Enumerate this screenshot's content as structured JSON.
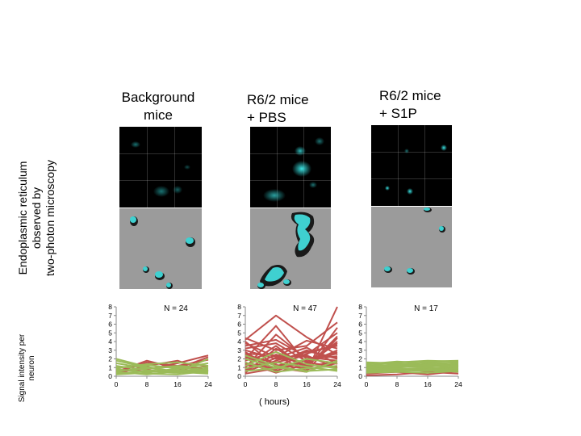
{
  "columns": [
    {
      "title_line1": "Background",
      "title_line2": "mice"
    },
    {
      "title_line1": "R6/2 mice",
      "title_line2": "+ PBS"
    },
    {
      "title_line1": "R6/2 mice",
      "title_line2": "+ S1P"
    }
  ],
  "side_label": {
    "line1": "Endoplasmic  reticulum",
    "line2": "observed by",
    "line3": "two-photon microscopy"
  },
  "colors": {
    "red_trace": "#c0504d",
    "green_trace": "#9bbb59",
    "recon_bg": "#9b9b9b",
    "cyan": "#2fd6d6"
  },
  "chart_data": [
    {
      "type": "line",
      "title": "N = 24",
      "ylabel": "Signal intensity per neuron",
      "xlabel": "",
      "x": [
        0,
        8,
        16,
        24
      ],
      "xticks": [
        "0",
        "8",
        "16",
        "24"
      ],
      "yticks": [
        "0",
        "1",
        "2",
        "3",
        "4",
        "5",
        "6",
        "7",
        "8"
      ],
      "ylim": [
        0,
        8
      ],
      "series_red": [
        [
          0.5,
          1.8,
          0.9,
          2.2
        ],
        [
          0.6,
          0.8,
          1.5,
          2.4
        ],
        [
          0.3,
          1.2,
          1.8,
          0.6
        ],
        [
          0.8,
          0.5,
          0.7,
          1.2
        ],
        [
          0.4,
          1.6,
          1.2,
          1.9
        ]
      ],
      "series_green": [
        [
          2.0,
          1.1,
          0.5,
          0.3
        ],
        [
          0.8,
          0.5,
          0.7,
          0.6
        ],
        [
          1.5,
          0.9,
          1.2,
          1.0
        ],
        [
          0.3,
          0.6,
          0.4,
          0.7
        ],
        [
          1.0,
          1.3,
          0.9,
          1.5
        ],
        [
          0.5,
          0.2,
          0.6,
          0.4
        ],
        [
          1.8,
          1.0,
          0.4,
          0.9
        ],
        [
          0.2,
          0.4,
          0.9,
          0.8
        ],
        [
          1.2,
          0.7,
          0.5,
          2.0
        ],
        [
          0.6,
          0.9,
          1.1,
          0.5
        ],
        [
          0.9,
          1.4,
          1.6,
          1.2
        ],
        [
          0.4,
          0.3,
          0.2,
          0.6
        ]
      ]
    },
    {
      "type": "line",
      "title": "N = 47",
      "ylabel": "",
      "xlabel": "( hours)",
      "x": [
        0,
        8,
        16,
        24
      ],
      "xticks": [
        "0",
        "8",
        "16",
        "24"
      ],
      "yticks": [
        "0",
        "1",
        "2",
        "3",
        "4",
        "5",
        "6",
        "7",
        "8"
      ],
      "ylim": [
        0,
        8
      ],
      "series_red": [
        [
          4.2,
          7.0,
          4.5,
          2.5
        ],
        [
          2.0,
          5.8,
          1.5,
          3.0
        ],
        [
          1.5,
          1.0,
          0.5,
          8.0
        ],
        [
          3.5,
          4.2,
          2.2,
          1.8
        ],
        [
          4.4,
          3.0,
          3.5,
          6.2
        ],
        [
          0.8,
          2.5,
          1.2,
          4.0
        ],
        [
          2.5,
          1.5,
          3.0,
          2.0
        ],
        [
          1.2,
          3.5,
          0.8,
          1.5
        ],
        [
          3.0,
          2.0,
          2.5,
          5.0
        ],
        [
          0.5,
          1.8,
          2.8,
          3.5
        ],
        [
          2.8,
          0.6,
          1.9,
          2.6
        ],
        [
          1.8,
          2.8,
          1.0,
          4.6
        ],
        [
          0.3,
          0.9,
          1.6,
          1.1
        ],
        [
          3.8,
          2.2,
          4.1,
          3.2
        ],
        [
          1.0,
          4.8,
          2.0,
          2.3
        ],
        [
          2.2,
          1.3,
          0.9,
          5.6
        ],
        [
          0.7,
          2.1,
          3.3,
          1.4
        ],
        [
          1.6,
          0.4,
          1.4,
          3.8
        ],
        [
          3.2,
          3.8,
          1.7,
          2.8
        ],
        [
          0.9,
          1.6,
          2.4,
          0.9
        ],
        [
          2.6,
          2.4,
          0.6,
          4.4
        ],
        [
          1.3,
          0.8,
          2.9,
          2.1
        ],
        [
          0.4,
          3.2,
          1.1,
          1.7
        ],
        [
          4.0,
          1.1,
          2.6,
          3.6
        ]
      ],
      "series_green": [
        [
          2.0,
          1.0,
          0.6,
          0.8
        ],
        [
          1.2,
          2.8,
          1.4,
          0.9
        ],
        [
          0.6,
          0.9,
          2.0,
          1.5
        ],
        [
          1.6,
          0.5,
          0.9,
          1.2
        ],
        [
          0.9,
          1.6,
          1.1,
          0.6
        ],
        [
          2.4,
          1.2,
          0.5,
          1.8
        ]
      ]
    },
    {
      "type": "line",
      "title": "N = 17",
      "ylabel": "",
      "xlabel": "",
      "x": [
        0,
        8,
        16,
        24
      ],
      "xticks": [
        "0",
        "8",
        "16",
        "24"
      ],
      "yticks": [
        "0",
        "1",
        "2",
        "3",
        "4",
        "5",
        "6",
        "7",
        "8"
      ],
      "ylim": [
        0,
        8
      ],
      "series_red": [
        [
          0.3,
          0.5,
          0.2,
          0.6
        ],
        [
          0.1,
          0.2,
          0.5,
          0.3
        ]
      ],
      "series_green": [
        [
          1.5,
          1.4,
          1.6,
          1.5
        ],
        [
          1.2,
          1.6,
          1.8,
          1.7
        ],
        [
          0.9,
          1.0,
          1.2,
          1.4
        ],
        [
          1.0,
          0.8,
          0.9,
          1.0
        ],
        [
          0.7,
          1.1,
          1.0,
          0.8
        ],
        [
          1.3,
          1.2,
          1.4,
          1.2
        ],
        [
          0.5,
          0.7,
          0.6,
          0.9
        ],
        [
          1.6,
          1.5,
          1.3,
          1.6
        ],
        [
          0.8,
          0.6,
          0.8,
          0.7
        ],
        [
          1.1,
          1.3,
          1.1,
          1.3
        ],
        [
          0.6,
          0.9,
          0.7,
          0.5
        ],
        [
          1.4,
          1.7,
          1.5,
          1.1
        ],
        [
          0.4,
          0.5,
          0.4,
          0.6
        ],
        [
          1.0,
          1.2,
          1.7,
          1.8
        ],
        [
          0.9,
          1.4,
          1.2,
          1.0
        ]
      ]
    }
  ]
}
